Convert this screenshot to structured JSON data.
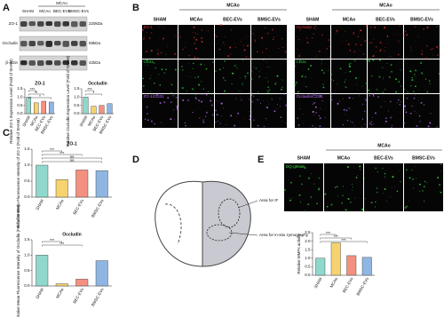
{
  "panels": {
    "A": {
      "label": "A",
      "group": "MCAo",
      "columns": [
        "SHAM",
        "MCAo",
        "BEC-EVs",
        "BMSC-EVs"
      ],
      "rows": [
        {
          "name": "ZO-1",
          "size": "220kDa"
        },
        {
          "name": "Occludin",
          "size": "59kDa"
        },
        {
          "name": "β-actin",
          "size": "42kDa"
        }
      ]
    },
    "B": {
      "label": "B",
      "groups": [
        {
          "header": "MCAo",
          "columns": [
            "SHAM",
            "MCAo",
            "BEC-EVs",
            "BMSC-EVs"
          ],
          "rows": [
            "ZO-1",
            "CD31",
            "ZO-1/CD31"
          ]
        },
        {
          "header": "MCAo",
          "columns": [
            "SHAM",
            "MCAo",
            "BEC-EVs",
            "BMSC-EVs"
          ],
          "rows": [
            "Occludin",
            "CD31",
            "Occludin/CD31"
          ]
        }
      ]
    },
    "C": {
      "label": "C"
    },
    "D": {
      "label": "D",
      "areas": [
        "Area for IF",
        "Area for in-situ zymography"
      ]
    },
    "E": {
      "label": "E",
      "group": "MCAo",
      "columns": [
        "SHAM",
        "MCAo",
        "BEC-EVs",
        "BMSC-EVs"
      ],
      "stain": "DQ-gelatin"
    }
  },
  "chart_data": [
    {
      "type": "bar",
      "title": "ZO-1",
      "ylabel": "Relative ZO-1 Expression Level (Fold of SHAM)",
      "categories": [
        "SHAM",
        "MCAo",
        "BEC-EVs",
        "BMSC-EVs"
      ],
      "values": [
        1.0,
        0.65,
        0.75,
        0.7
      ],
      "colors": [
        "#8fd8cb",
        "#f6d36f",
        "#f4907f",
        "#8fb6e2"
      ],
      "ylim": [
        0,
        1.5
      ],
      "yticks": [
        "0.0",
        "0.5",
        "1.0",
        "1.5"
      ],
      "significance": [
        "***",
        "**",
        "*"
      ]
    },
    {
      "type": "bar",
      "title": "Occludin",
      "ylabel": "Relative Occludin Expression Level (Fold of SHAM)",
      "categories": [
        "SHAM",
        "MCAo",
        "BEC-EVs",
        "BMSC-EVs"
      ],
      "values": [
        1.0,
        0.45,
        0.5,
        0.6
      ],
      "colors": [
        "#8fd8cb",
        "#f6d36f",
        "#f4907f",
        "#8fb6e2"
      ],
      "ylim": [
        0,
        1.5
      ],
      "yticks": [
        "0.0",
        "0.5",
        "1.0",
        "1.5"
      ],
      "significance": [
        "***",
        "*"
      ]
    },
    {
      "type": "bar",
      "title": "ZO-1",
      "ylabel": "Relative Mean Fluorescence Intensity of ZO-1 (Fold of SHAM)",
      "categories": [
        "SHAM",
        "MCAo",
        "BEC-EVs",
        "BMSC-EVs"
      ],
      "values": [
        1.0,
        0.55,
        0.85,
        0.83
      ],
      "colors": [
        "#8fd8cb",
        "#f6d36f",
        "#f4907f",
        "#8fb6e2"
      ],
      "ylim": [
        0,
        1.5
      ],
      "yticks": [
        "0.0",
        "0.5",
        "1.0",
        "1.5"
      ],
      "significance": [
        "***",
        "***",
        "ns",
        "ns"
      ]
    },
    {
      "type": "bar",
      "title": "Occludin",
      "ylabel": "Relative Mean Fluorescence Intensity of Occludin (Fold of SHAM)",
      "categories": [
        "SHAM",
        "MCAo",
        "BEC-EVs",
        "BMSC-EVs"
      ],
      "values": [
        1.0,
        0.07,
        0.22,
        0.82
      ],
      "colors": [
        "#8fd8cb",
        "#f6d36f",
        "#f4907f",
        "#8fb6e2"
      ],
      "ylim": [
        0,
        1.5
      ],
      "yticks": [
        "0.0",
        "0.5",
        "1.0",
        "1.5"
      ],
      "significance": [
        "***",
        "***"
      ]
    },
    {
      "type": "bar",
      "ylabel": "Relative MMPs activity",
      "categories": [
        "SHAM",
        "MCAo",
        "BEC-EVs",
        "BMSC-EVs"
      ],
      "values": [
        1.0,
        1.9,
        1.15,
        1.05
      ],
      "colors": [
        "#8fd8cb",
        "#f6d36f",
        "#f4907f",
        "#8fb6e2"
      ],
      "ylim": [
        0,
        2.5
      ],
      "yticks": [
        "0.0",
        "0.5",
        "1.0",
        "1.5",
        "2.0",
        "2.5"
      ],
      "significance": [
        "***",
        "***",
        "***"
      ]
    }
  ]
}
